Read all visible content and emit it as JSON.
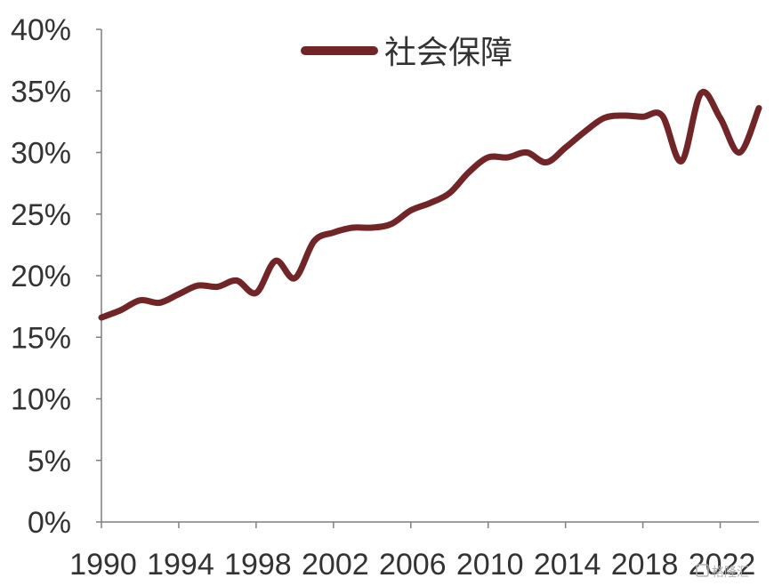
{
  "chart_data": {
    "type": "line",
    "title": "",
    "xlabel": "",
    "ylabel": "",
    "xlim": [
      1990,
      2024
    ],
    "ylim": [
      0,
      40
    ],
    "yticks": [
      "0%",
      "5%",
      "10%",
      "15%",
      "20%",
      "25%",
      "30%",
      "35%",
      "40%"
    ],
    "xticks": [
      "1990",
      "1994",
      "1998",
      "2002",
      "2006",
      "2010",
      "2014",
      "2018",
      "2022"
    ],
    "grid": false,
    "legend_position": "top",
    "series": [
      {
        "name": "社会保障",
        "color": "#722526",
        "x": [
          1990,
          1991,
          1992,
          1993,
          1994,
          1995,
          1996,
          1997,
          1998,
          1999,
          2000,
          2001,
          2002,
          2003,
          2004,
          2005,
          2006,
          2007,
          2008,
          2009,
          2010,
          2011,
          2012,
          2013,
          2014,
          2015,
          2016,
          2017,
          2018,
          2019,
          2020,
          2021,
          2022,
          2023,
          2024
        ],
        "values": [
          16.6,
          17.2,
          18.0,
          17.8,
          18.5,
          19.2,
          19.1,
          19.6,
          18.6,
          21.2,
          19.8,
          22.8,
          23.5,
          23.9,
          23.9,
          24.2,
          25.3,
          25.9,
          26.7,
          28.4,
          29.6,
          29.6,
          30.0,
          29.2,
          30.4,
          31.7,
          32.8,
          33.0,
          32.9,
          33.0,
          29.3,
          34.8,
          32.8,
          30.0,
          33.6
        ]
      }
    ]
  },
  "watermark": "格隆汇"
}
